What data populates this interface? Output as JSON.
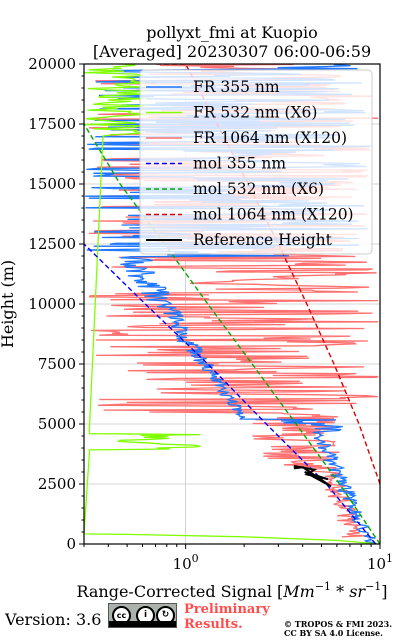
{
  "chart_data": {
    "type": "line",
    "title_line1": "pollyxt_fmi at Kuopio",
    "title_line2": "[Averaged] 20230307 06:00-06:59",
    "ylabel": "Height (m)",
    "xlabel_prefix": "Range-Corrected Signal [",
    "xlabel_unit": "Mm",
    "xlabel_exp1": "−1",
    "xlabel_mid": " * ",
    "xlabel_sr": "sr",
    "xlabel_exp2": "−1",
    "xlabel_suffix": "]",
    "xscale": "log",
    "xlim": [
      0.3,
      10
    ],
    "ylim": [
      0,
      20000
    ],
    "grid": true,
    "legend_position": "top-right",
    "yticks": [
      0,
      2500,
      5000,
      7500,
      10000,
      12500,
      15000,
      17500,
      20000
    ],
    "ytick_labels": [
      "0",
      "2500",
      "5000",
      "7500",
      "10000",
      "12500",
      "15000",
      "17500",
      "20000"
    ],
    "xtick_labels": [
      {
        "value": 1,
        "base": "10",
        "exp": "0"
      },
      {
        "value": 10,
        "base": "10",
        "exp": "1"
      }
    ],
    "series": [
      {
        "name": "FR 355 nm",
        "color": "#1f77ff",
        "style": "solid",
        "kind": "fr355"
      },
      {
        "name": "FR 532 nm (X6)",
        "color": "#80ff00",
        "style": "solid",
        "kind": "fr532"
      },
      {
        "name": "FR 1064 nm (X120)",
        "color": "#ff7070",
        "style": "solid",
        "kind": "fr1064"
      },
      {
        "name": "mol 355 nm",
        "color": "#0000ff",
        "style": "dashed",
        "x": [
          9.5,
          5.3,
          2.6,
          1.3,
          0.62,
          0.3
        ],
        "y": [
          0,
          2500,
          5000,
          7500,
          10000,
          12500
        ]
      },
      {
        "name": "mol 532 nm (X6)",
        "color": "#00aa00",
        "style": "dashed",
        "x": [
          10.0,
          6.2,
          3.7,
          2.2,
          1.3,
          0.78,
          0.46,
          0.3
        ],
        "y": [
          0,
          2500,
          5000,
          7500,
          10000,
          12500,
          15000,
          17500
        ]
      },
      {
        "name": "mol 1064 nm (X120)",
        "color": "#dd0000",
        "style": "dashed",
        "x": [
          10.0,
          7.8,
          5.8,
          4.2,
          3.0,
          2.1,
          1.45,
          1.0,
          0.7
        ],
        "y": [
          2500,
          5000,
          7500,
          10000,
          12500,
          15000,
          17500,
          20000,
          20000
        ]
      },
      {
        "name": "Reference Height",
        "color": "#000000",
        "style": "solid",
        "x": [
          3.6,
          4.6,
          4.2,
          5.4,
          4.1,
          5.6,
          4.0,
          3.6
        ],
        "y": [
          3250,
          3100,
          2900,
          2700,
          3000,
          2400,
          3200,
          3150
        ]
      }
    ]
  },
  "footer": {
    "version": "Version: 3.6",
    "cc_label": "CC BY SA",
    "preliminary_line1": "Preliminary",
    "preliminary_line2": "Results.",
    "copyright_line1": "© TROPOS & FMI 2023.",
    "copyright_line2": "CC BY SA 4.0 License."
  }
}
